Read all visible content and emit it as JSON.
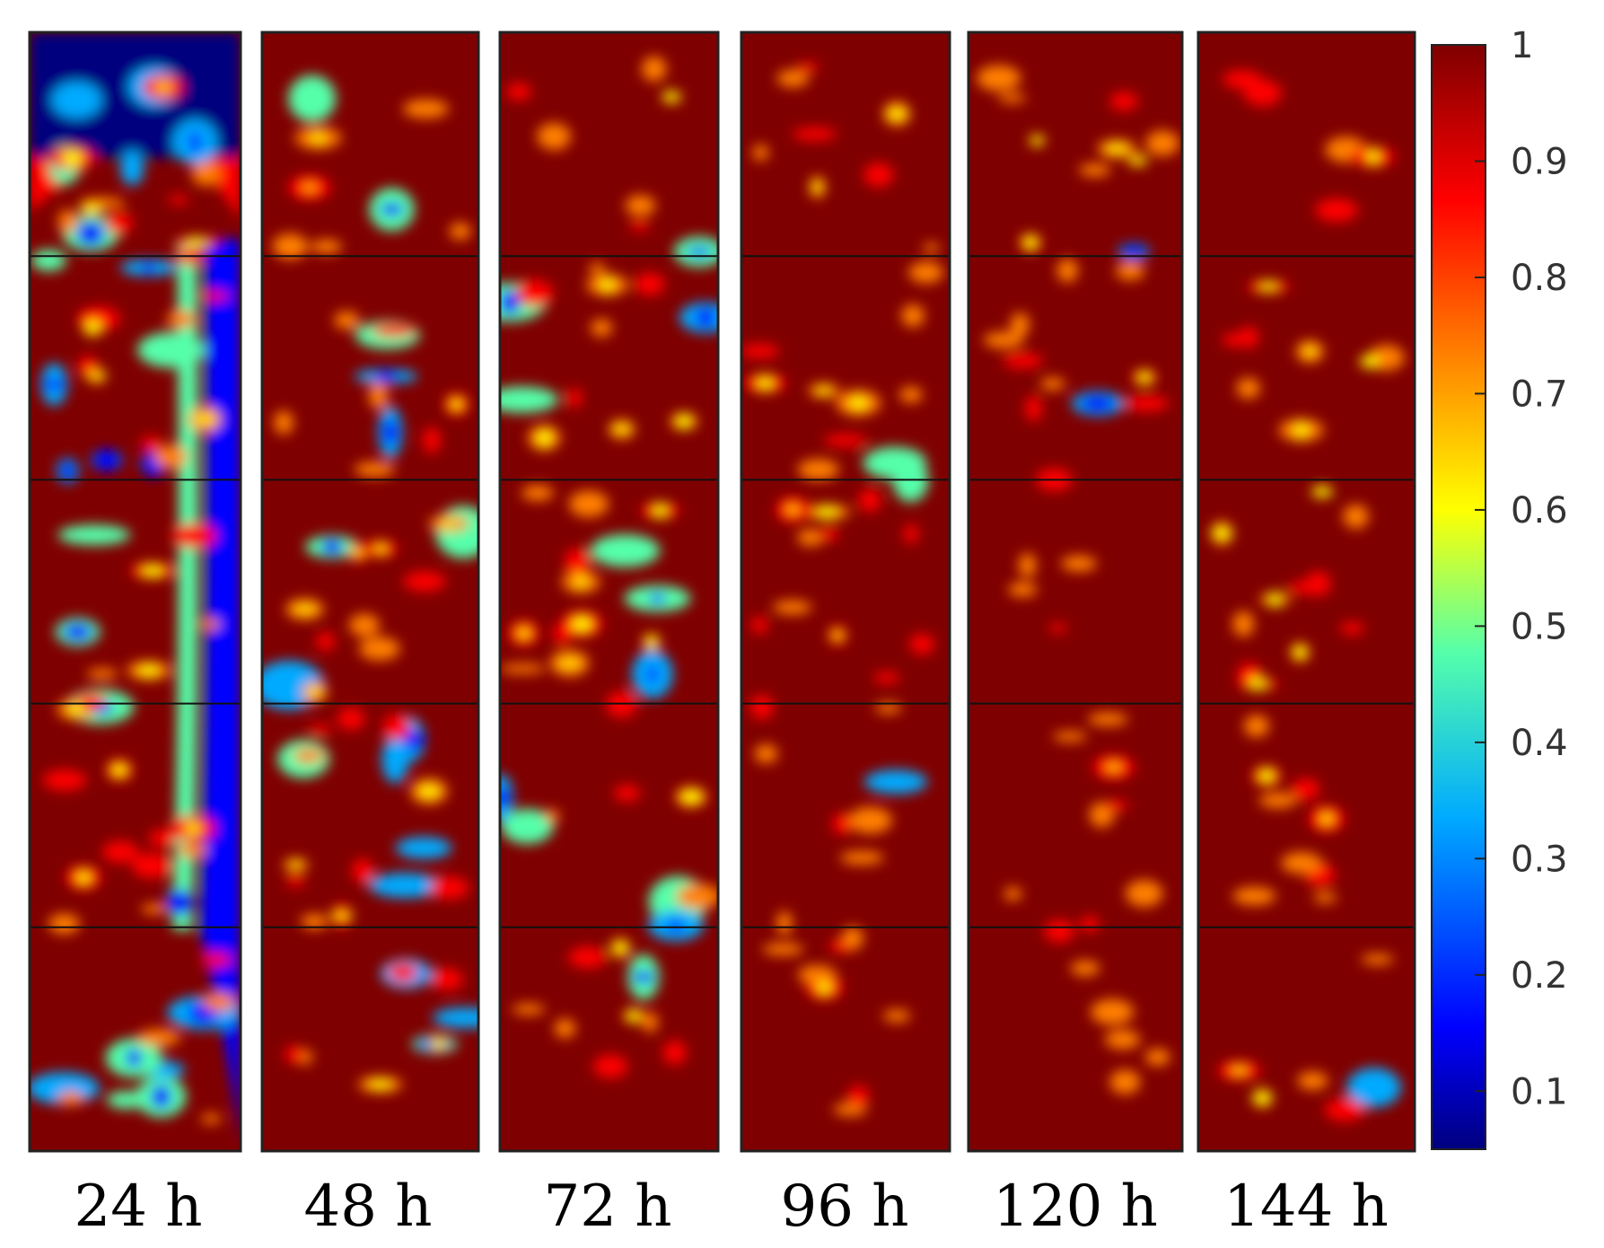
{
  "chart_data": {
    "type": "heatmap",
    "title": "",
    "xlabel": "",
    "ylabel": "",
    "panels": [
      {
        "label": "24 h",
        "saturated_fraction": 0.62
      },
      {
        "label": "48 h",
        "saturated_fraction": 0.74
      },
      {
        "label": "72 h",
        "saturated_fraction": 0.8
      },
      {
        "label": "96 h",
        "saturated_fraction": 0.95
      },
      {
        "label": "120 h",
        "saturated_fraction": 0.97
      },
      {
        "label": "144 h",
        "saturated_fraction": 0.98
      }
    ],
    "colorbar": {
      "range": [
        0.05,
        1
      ],
      "ticks": [
        "0.1",
        "0.2",
        "0.3",
        "0.4",
        "0.5",
        "0.6",
        "0.7",
        "0.8",
        "0.9",
        "1"
      ],
      "colormap": [
        "#00007f",
        "#0000ff",
        "#00aaff",
        "#55ffaa",
        "#ffff00",
        "#ff8000",
        "#ff0000",
        "#7f0000"
      ]
    },
    "grid": "on"
  }
}
